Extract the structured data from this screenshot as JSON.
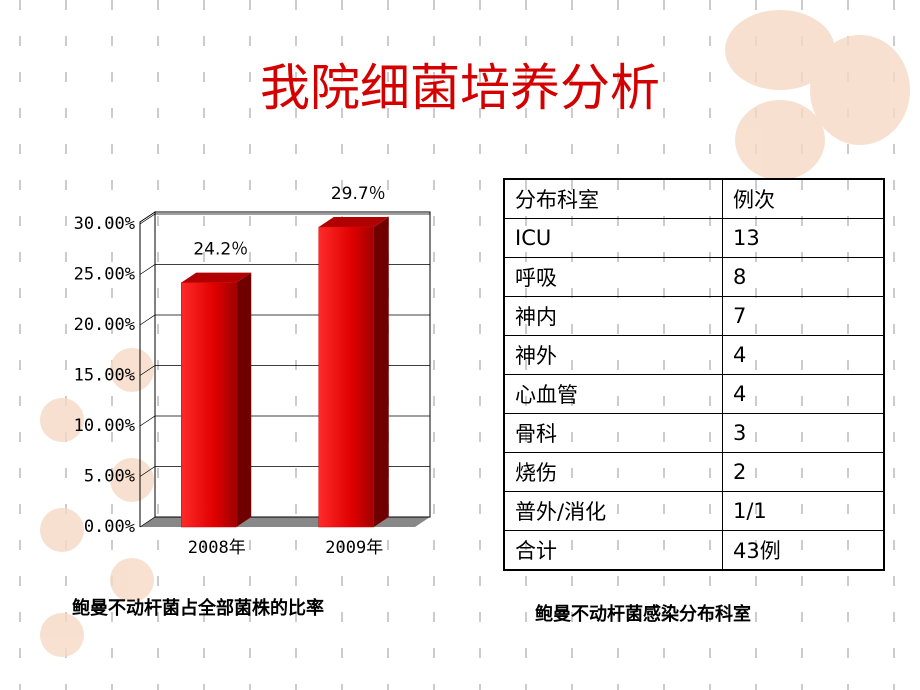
{
  "title": "我院细菌培养分析",
  "chart_data": {
    "type": "bar",
    "categories": [
      "2008年",
      "2009年"
    ],
    "values": [
      24.2,
      29.7
    ],
    "value_labels": [
      "24.2％",
      "29.7％"
    ],
    "color": "#e00000",
    "ylim": [
      0,
      30
    ],
    "yticks": [
      {
        "value": 0,
        "label": "0.00%"
      },
      {
        "value": 5,
        "label": "5.00%"
      },
      {
        "value": 10,
        "label": "10.00%"
      },
      {
        "value": 15,
        "label": "15.00%"
      },
      {
        "value": 20,
        "label": "20.00%"
      },
      {
        "value": 25,
        "label": "25.00%"
      },
      {
        "value": 30,
        "label": "30.00%"
      }
    ],
    "grid": true,
    "caption": "鲍曼不动杆菌占全部菌株的比率"
  },
  "table": {
    "header": [
      "分布科室",
      "例次"
    ],
    "rows": [
      [
        "ICU",
        "13"
      ],
      [
        "呼吸",
        "8"
      ],
      [
        "神内",
        "7"
      ],
      [
        "神外",
        "4"
      ],
      [
        "心血管",
        "4"
      ],
      [
        "骨科",
        "3"
      ],
      [
        "烧伤",
        "2"
      ],
      [
        "普外/消化",
        "1/1"
      ],
      [
        "合计",
        "43例"
      ]
    ],
    "caption": "鲍曼不动杆菌感染分布科室"
  }
}
